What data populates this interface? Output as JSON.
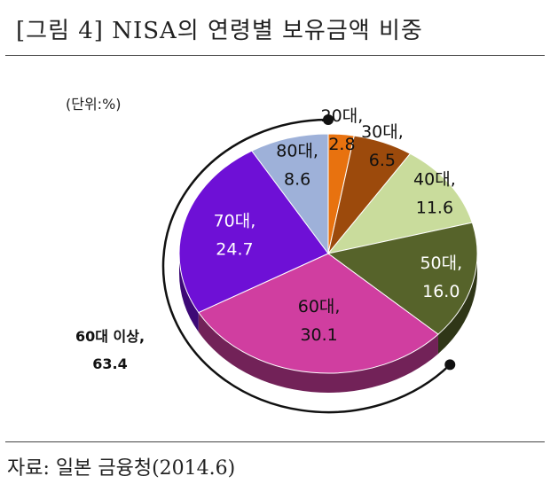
{
  "title": "[그림 4] NISA의 연령별 보유금액 비중",
  "unit_label": "(단위:%)",
  "source": "자료: 일본 금융청(2014.6)",
  "chart_data": {
    "type": "pie",
    "title": "[그림 4] NISA의 연령별 보유금액 비중",
    "unit": "%",
    "categories": [
      "20대",
      "30대",
      "40대",
      "50대",
      "60대",
      "70대",
      "80대"
    ],
    "values": [
      2.8,
      6.5,
      11.6,
      16.0,
      30.1,
      24.7,
      8.6
    ],
    "colors": [
      "#e8720f",
      "#9c4a0c",
      "#c9dc9c",
      "#56632a",
      "#d03ea0",
      "#6e10d6",
      "#9eb1d9"
    ],
    "start": "12 o'clock, clockwise",
    "group_annotation": {
      "label": "60대 이상,",
      "value": "63.4",
      "members": [
        "60대",
        "70대",
        "80대"
      ]
    }
  }
}
